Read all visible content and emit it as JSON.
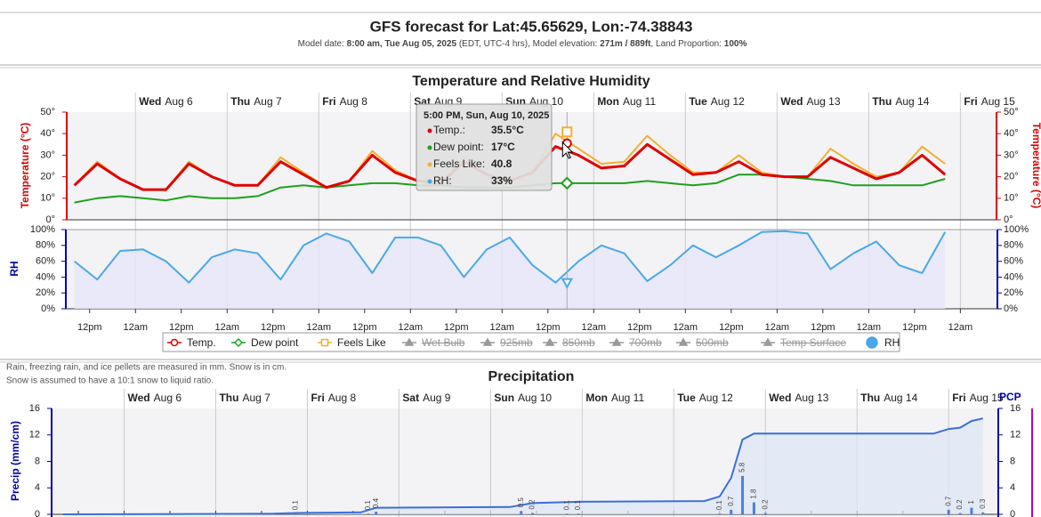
{
  "header": {
    "title": "GFS forecast for Lat:45.65629, Lon:-74.38843",
    "subtitle": [
      {
        "text": "Model date: ",
        "bold": false
      },
      {
        "text": "8:00 am, Tue Aug 05, 2025",
        "bold": true
      },
      {
        "text": " (EDT, UTC-4 hrs), Model elevation: ",
        "bold": false
      },
      {
        "text": "271m / 889ft",
        "bold": true
      },
      {
        "text": ", Land Proportion: ",
        "bold": false
      },
      {
        "text": "100%",
        "bold": true
      }
    ]
  },
  "chart_data": [
    {
      "type": "line",
      "title": "Temperature and Relative Humidity",
      "ylabel": "Temperature (°C)",
      "y2label": "RH",
      "xlim": [
        -2,
        241
      ],
      "day_labels": [
        {
          "value": 16,
          "day": "Wed",
          "date": "Aug 6"
        },
        {
          "value": 40,
          "day": "Thu",
          "date": "Aug 7"
        },
        {
          "value": 64,
          "day": "Fri",
          "date": "Aug 8"
        },
        {
          "value": 88,
          "day": "Sat",
          "date": "Aug 9"
        },
        {
          "value": 112,
          "day": "Sun",
          "date": "Aug 10"
        },
        {
          "value": 136,
          "day": "Mon",
          "date": "Aug 11"
        },
        {
          "value": 160,
          "day": "Tue",
          "date": "Aug 12"
        },
        {
          "value": 184,
          "day": "Wed",
          "date": "Aug 13"
        },
        {
          "value": 208,
          "day": "Thu",
          "date": "Aug 14"
        },
        {
          "value": 232,
          "day": "Fri",
          "date": "Aug 15"
        }
      ],
      "xticks": [
        {
          "value": 4,
          "label": "12pm"
        },
        {
          "value": 16,
          "label": "12am"
        },
        {
          "value": 28,
          "label": "12pm"
        },
        {
          "value": 40,
          "label": "12am"
        },
        {
          "value": 52,
          "label": "12pm"
        },
        {
          "value": 64,
          "label": "12am"
        },
        {
          "value": 76,
          "label": "12pm"
        },
        {
          "value": 88,
          "label": "12am"
        },
        {
          "value": 100,
          "label": "12pm"
        },
        {
          "value": 112,
          "label": "12am"
        },
        {
          "value": 124,
          "label": "12pm"
        },
        {
          "value": 136,
          "label": "12am"
        },
        {
          "value": 148,
          "label": "12pm"
        },
        {
          "value": 160,
          "label": "12am"
        },
        {
          "value": 172,
          "label": "12pm"
        },
        {
          "value": 184,
          "label": "12am"
        },
        {
          "value": 196,
          "label": "12pm"
        },
        {
          "value": 208,
          "label": "12am"
        },
        {
          "value": 220,
          "label": "12pm"
        },
        {
          "value": 232,
          "label": "12am"
        }
      ],
      "ylim": [
        0,
        50
      ],
      "yticks": [
        {
          "value": 0,
          "label": "0°"
        },
        {
          "value": 10,
          "label": "10°"
        },
        {
          "value": 20,
          "label": "20°"
        },
        {
          "value": 30,
          "label": "30°"
        },
        {
          "value": 40,
          "label": "40°"
        },
        {
          "value": 50,
          "label": "50°"
        }
      ],
      "y2lim": [
        0,
        100
      ],
      "y2ticks": [
        {
          "value": 0,
          "label": "0%"
        },
        {
          "value": 20,
          "label": "20%"
        },
        {
          "value": 40,
          "label": "40%"
        },
        {
          "value": 60,
          "label": "60%"
        },
        {
          "value": 80,
          "label": "80%"
        },
        {
          "value": 100,
          "label": "100%"
        }
      ],
      "x": [
        0,
        6,
        12,
        18,
        24,
        30,
        36,
        42,
        48,
        54,
        60,
        66,
        72,
        78,
        84,
        90,
        96,
        102,
        108,
        114,
        120,
        126,
        132,
        138,
        144,
        150,
        156,
        162,
        168,
        174,
        180,
        186,
        192,
        198,
        204,
        210,
        216,
        222,
        228
      ],
      "series": [
        {
          "name": "Temp.",
          "color": "#e00000",
          "marker": "circle",
          "values": [
            16,
            26,
            19,
            14,
            14,
            26,
            20,
            16,
            16,
            27,
            21,
            15,
            18,
            30,
            22,
            18,
            17,
            27,
            21,
            18,
            22,
            34,
            30,
            24,
            25,
            35,
            28,
            21,
            22,
            27,
            21,
            20,
            20,
            29,
            24,
            19,
            22,
            30,
            21
          ]
        },
        {
          "name": "Dew point",
          "color": "#1ea01e",
          "marker": "diamond",
          "values": [
            8,
            10,
            11,
            10,
            9,
            11,
            10,
            10,
            11,
            15,
            16,
            15,
            16,
            17,
            17,
            16,
            16,
            15,
            15,
            15,
            16,
            17,
            17,
            17,
            17,
            18,
            17,
            16,
            17,
            21,
            21,
            20,
            19,
            18,
            16,
            16,
            16,
            16,
            19
          ]
        },
        {
          "name": "Feels Like",
          "color": "#f0b030",
          "marker": "square",
          "values": [
            16,
            27,
            19,
            14,
            14,
            27,
            20,
            16,
            16,
            29,
            22,
            15,
            18,
            32,
            23,
            18,
            17,
            29,
            21,
            18,
            22,
            40,
            33,
            26,
            27,
            39,
            30,
            22,
            22,
            30,
            22,
            20,
            20,
            33,
            26,
            20,
            22,
            34,
            26
          ]
        },
        {
          "name": "RH",
          "color": "#4aa8e8",
          "marker": "dot",
          "axis": "y2",
          "values": [
            60,
            37,
            73,
            75,
            60,
            33,
            65,
            75,
            70,
            37,
            80,
            95,
            85,
            45,
            90,
            90,
            80,
            40,
            75,
            90,
            55,
            33,
            60,
            80,
            70,
            35,
            55,
            80,
            65,
            80,
            97,
            98,
            95,
            50,
            70,
            85,
            55,
            45,
            97
          ]
        }
      ],
      "hidden_series": [
        "Wet Bulb",
        "925mb",
        "850mb",
        "700mb",
        "500mb",
        "Temp Surface"
      ],
      "tooltip": {
        "x": 129,
        "title": "5:00 PM, Sun, Aug 10, 2025",
        "rows": [
          {
            "label": "Temp.:",
            "value": 35.5,
            "value_label": "35.5°C"
          },
          {
            "label": "Dew point:",
            "value": 17,
            "value_label": "17°C"
          },
          {
            "label": "Feels Like:",
            "value": 40.8,
            "value_label": "40.8"
          },
          {
            "label": "RH:",
            "value": 33,
            "value_label": "33%"
          }
        ]
      }
    },
    {
      "type": "bar",
      "title": "Precipitation",
      "ylabel": "Precip (mm/cm)",
      "y2label": "PCP",
      "notes": [
        "Rain, freezing rain, and ice pellets are measured in mm. Snow is in cm.",
        "Snow is assumed to have a 10:1 snow to liquid ratio."
      ],
      "xlim": [
        -3,
        245
      ],
      "xticks": [
        4,
        16,
        28,
        40,
        52,
        64,
        76,
        88,
        100,
        112,
        124,
        136,
        148,
        160,
        172,
        184,
        196,
        208,
        220,
        232
      ],
      "ylim": [
        0,
        16
      ],
      "yticks": [
        0,
        4,
        8,
        12,
        16
      ],
      "bars": {
        "color": "#4a80e0",
        "x": [
          61,
          80,
          82,
          120,
          123,
          132,
          135,
          172,
          175,
          178,
          181,
          184,
          232,
          235,
          238,
          241
        ],
        "values": [
          0.1,
          0.1,
          0.4,
          0.5,
          0.2,
          0.1,
          0.1,
          0.1,
          0.7,
          5.8,
          1.8,
          0.2,
          0.7,
          0.2,
          1,
          0.3
        ]
      },
      "line": {
        "color": "#3a6fd8",
        "x": [
          0,
          55,
          61,
          78,
          82,
          117,
          123,
          135,
          168,
          172,
          175,
          178,
          181,
          228,
          232,
          235,
          238,
          241
        ],
        "values": [
          0,
          0.1,
          0.2,
          0.3,
          1.0,
          1.1,
          1.7,
          1.9,
          2.0,
          2.7,
          5.5,
          11.3,
          12.2,
          12.2,
          12.9,
          13.1,
          14.1,
          14.5
        ]
      }
    }
  ]
}
